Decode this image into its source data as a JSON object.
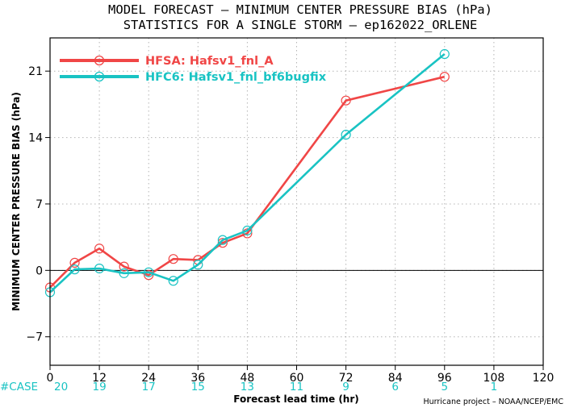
{
  "chart_data": {
    "type": "line",
    "title_lines": [
      "MODEL FORECAST – MINIMUM CENTER PRESSURE BIAS (hPa)",
      "STATISTICS FOR A SINGLE STORM – ep162022_ORLENE"
    ],
    "xlabel": "Forecast lead time (hr)",
    "ylabel": "MINIMUM CENTER PRESSURE BIAS (hPa)",
    "xlim": [
      0,
      120
    ],
    "ylim": [
      -10,
      24.5
    ],
    "x_ticks": [
      0,
      12,
      24,
      36,
      48,
      60,
      72,
      84,
      96,
      108,
      120
    ],
    "x_tick_labels": [
      "0",
      "12",
      "24",
      "36",
      "48",
      "60",
      "72",
      "84",
      "96",
      "108",
      "120"
    ],
    "y_ticks": [
      -7,
      0,
      7,
      14,
      21
    ],
    "y_tick_labels": [
      "−7",
      "0",
      "7",
      "14",
      "21"
    ],
    "grid": true,
    "reference_line_y": 0,
    "legend_position": "top-left",
    "series": [
      {
        "name": "HFSA: Hafsv1_fnl_A",
        "color": "#f04646",
        "x": [
          0,
          6,
          12,
          18,
          24,
          30,
          36,
          42,
          48,
          72,
          96
        ],
        "y": [
          -1.8,
          0.8,
          2.3,
          0.4,
          -0.5,
          1.2,
          1.1,
          2.9,
          3.9,
          17.9,
          20.4
        ]
      },
      {
        "name": "HFC6: Hafsv1_fnl_bf6bugfix",
        "color": "#19c3c3",
        "x": [
          0,
          6,
          12,
          18,
          24,
          30,
          36,
          42,
          48,
          72,
          96
        ],
        "y": [
          -2.3,
          0.1,
          0.2,
          -0.3,
          -0.2,
          -1.1,
          0.6,
          3.2,
          4.2,
          14.3,
          22.8
        ]
      }
    ],
    "case_label": "#CASE",
    "case_counts": {
      "x": [
        0,
        12,
        24,
        36,
        48,
        60,
        72,
        84,
        96,
        108
      ],
      "labels": [
        "20",
        "19",
        "17",
        "15",
        "13",
        "11",
        "9",
        "6",
        "5",
        "1"
      ]
    },
    "credit": "Hurricane project – NOAA/NCEP/EMC"
  }
}
